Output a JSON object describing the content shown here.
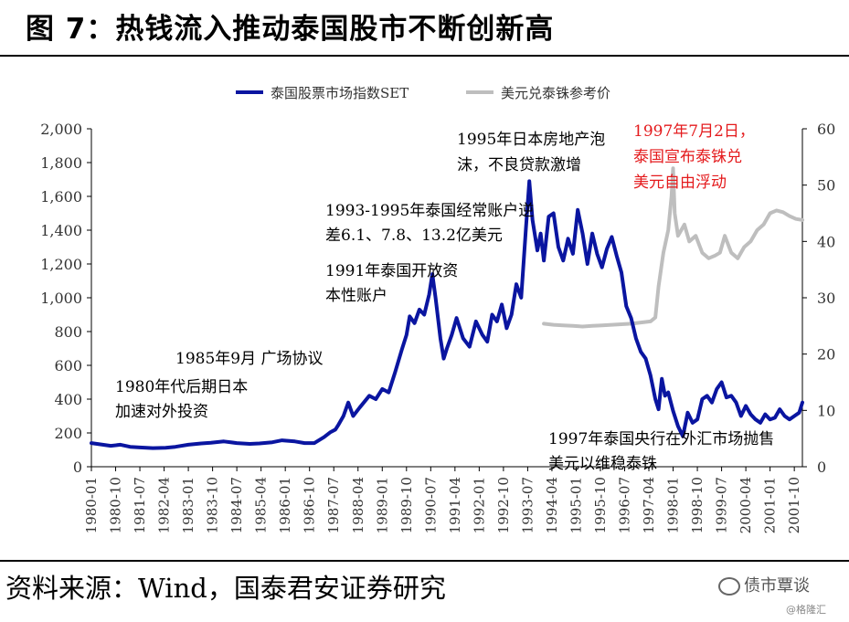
{
  "title": "图 7：热钱流入推动泰国股市不断创新高",
  "source": "资料来源：Wind，国泰君安证券研究",
  "watermark": "债市覃谈",
  "watermark_small": "@格隆汇",
  "chart_data": {
    "type": "line",
    "x_tick_labels": [
      "1980-01",
      "1980-10",
      "1981-07",
      "1982-04",
      "1983-01",
      "1983-10",
      "1984-07",
      "1985-04",
      "1986-01",
      "1986-10",
      "1987-07",
      "1988-04",
      "1989-01",
      "1989-10",
      "1990-07",
      "1991-04",
      "1992-01",
      "1992-10",
      "1993-07",
      "1994-04",
      "1995-01",
      "1995-10",
      "1996-07",
      "1997-04",
      "1998-01",
      "1998-10",
      "1999-07",
      "2000-04",
      "2001-01",
      "2001-10"
    ],
    "y_left": {
      "min": 0,
      "max": 2000,
      "ticks": [
        "0",
        "200",
        "400",
        "600",
        "800",
        "1,000",
        "1,200",
        "1,400",
        "1,600",
        "1,800",
        "2,000"
      ]
    },
    "y_right": {
      "min": 0,
      "max": 60,
      "ticks": [
        "0",
        "10",
        "20",
        "30",
        "40",
        "50",
        "60"
      ]
    },
    "legend": [
      "泰国股票市场指数SET",
      "美元兑泰铢参考价"
    ],
    "legend_position": "top",
    "grid": false,
    "series": [
      {
        "name": "泰国股票市场指数SET",
        "axis": "left",
        "color": "#0a15a0",
        "x": [
          1980.0,
          1980.3,
          1980.6,
          1980.9,
          1981.2,
          1981.5,
          1981.9,
          1982.3,
          1982.6,
          1983.0,
          1983.4,
          1983.7,
          1984.1,
          1984.5,
          1984.9,
          1985.2,
          1985.6,
          1985.9,
          1986.3,
          1986.6,
          1986.9,
          1987.2,
          1987.4,
          1987.55,
          1987.65,
          1987.8,
          1987.95,
          1988.1,
          1988.3,
          1988.6,
          1988.8,
          1989.0,
          1989.2,
          1989.4,
          1989.6,
          1989.75,
          1989.85,
          1990.0,
          1990.15,
          1990.3,
          1990.45,
          1990.55,
          1990.65,
          1990.8,
          1990.9,
          1991.0,
          1991.15,
          1991.3,
          1991.5,
          1991.7,
          1991.9,
          1992.1,
          1992.25,
          1992.4,
          1992.55,
          1992.7,
          1992.85,
          1993.0,
          1993.15,
          1993.3,
          1993.45,
          1993.55,
          1993.65,
          1993.8,
          1993.9,
          1994.0,
          1994.15,
          1994.3,
          1994.45,
          1994.6,
          1994.75,
          1994.9,
          1995.05,
          1995.2,
          1995.35,
          1995.5,
          1995.65,
          1995.8,
          1995.95,
          1996.1,
          1996.25,
          1996.4,
          1996.55,
          1996.7,
          1996.85,
          1997.0,
          1997.15,
          1997.3,
          1997.45,
          1997.55,
          1997.65,
          1997.75,
          1997.85,
          1998.0,
          1998.15,
          1998.3,
          1998.45,
          1998.6,
          1998.75,
          1998.9,
          1999.05,
          1999.2,
          1999.35,
          1999.5,
          1999.65,
          1999.8,
          1999.95,
          2000.1,
          2000.25,
          2000.4,
          2000.55,
          2000.7,
          2000.85,
          2001.0,
          2001.15,
          2001.3,
          2001.45,
          2001.6,
          2001.75,
          2001.9,
          2002.0
        ],
        "values": [
          140,
          132,
          124,
          130,
          118,
          114,
          110,
          112,
          118,
          130,
          138,
          142,
          150,
          140,
          135,
          138,
          145,
          156,
          150,
          140,
          140,
          175,
          205,
          220,
          250,
          300,
          380,
          300,
          350,
          420,
          400,
          460,
          440,
          560,
          690,
          780,
          890,
          850,
          930,
          900,
          1020,
          1140,
          1000,
          760,
          640,
          700,
          780,
          880,
          760,
          710,
          860,
          780,
          740,
          900,
          860,
          960,
          820,
          900,
          1080,
          1000,
          1420,
          1690,
          1460,
          1280,
          1380,
          1220,
          1480,
          1500,
          1300,
          1220,
          1350,
          1260,
          1520,
          1380,
          1200,
          1380,
          1260,
          1180,
          1290,
          1360,
          1250,
          1150,
          950,
          880,
          760,
          680,
          640,
          540,
          400,
          340,
          520,
          420,
          440,
          330,
          240,
          180,
          320,
          260,
          280,
          400,
          420,
          380,
          460,
          500,
          410,
          420,
          380,
          300,
          360,
          310,
          280,
          260,
          310,
          280,
          290,
          340,
          300,
          280,
          300,
          320,
          380
        ]
      },
      {
        "name": "美元兑泰铢参考价",
        "axis": "right",
        "color": "#bebebe",
        "x": [
          1994.0,
          1994.3,
          1994.6,
          1994.9,
          1995.2,
          1995.5,
          1995.8,
          1996.1,
          1996.4,
          1996.7,
          1997.0,
          1997.3,
          1997.45,
          1997.55,
          1997.7,
          1997.85,
          1997.95,
          1998.0,
          1998.05,
          1998.15,
          1998.25,
          1998.35,
          1998.5,
          1998.7,
          1998.9,
          1999.1,
          1999.3,
          1999.45,
          1999.6,
          1999.8,
          2000.0,
          2000.2,
          2000.4,
          2000.6,
          2000.8,
          2001.0,
          2001.2,
          2001.4,
          2001.6,
          2001.8,
          2002.0
        ],
        "values": [
          25.4,
          25.2,
          25.1,
          25.0,
          24.9,
          25.0,
          25.1,
          25.2,
          25.3,
          25.4,
          25.6,
          25.8,
          26.5,
          32,
          38,
          42,
          48,
          53,
          45,
          41,
          42,
          43,
          40,
          41,
          38,
          37,
          37.5,
          38,
          41,
          38,
          37,
          39,
          40,
          42,
          43,
          45,
          45.5,
          45.2,
          44.5,
          44.0,
          43.8
        ]
      }
    ],
    "annotations": [
      {
        "lines": [
          "1980年代后期日本",
          "加速对外投资"
        ],
        "color": "#000000"
      },
      {
        "lines": [
          "1985年9月  广场协议"
        ],
        "color": "#000000"
      },
      {
        "lines": [
          "1991年泰国开放资",
          "本性账户"
        ],
        "color": "#000000"
      },
      {
        "lines": [
          "1993-1995年泰国经常账户逆",
          "差6.1、7.8、13.2亿美元"
        ],
        "color": "#000000"
      },
      {
        "lines": [
          "1995年日本房地产泡",
          "沫，不良贷款激增"
        ],
        "color": "#000000"
      },
      {
        "lines": [
          "1997年7月2日，",
          "泰国宣布泰铢兑",
          "美元自由浮动"
        ],
        "color": "#e41a1c"
      },
      {
        "lines": [
          "1997年泰国央行在外汇市场抛售",
          "美元以维稳泰铢"
        ],
        "color": "#000000"
      }
    ]
  }
}
